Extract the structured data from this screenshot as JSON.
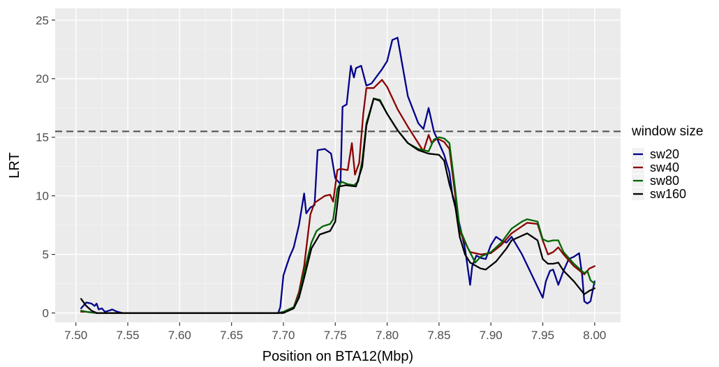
{
  "chart_data": {
    "type": "line",
    "xlabel": "Position on BTA12(Mbp)",
    "ylabel": "LRT",
    "xlim": [
      7.48,
      8.025
    ],
    "ylim": [
      -0.8,
      26
    ],
    "x_ticks": [
      7.5,
      7.55,
      7.6,
      7.65,
      7.7,
      7.75,
      7.8,
      7.85,
      7.9,
      7.95,
      8.0
    ],
    "x_tick_labels": [
      "7.50",
      "7.55",
      "7.60",
      "7.65",
      "7.70",
      "7.75",
      "7.80",
      "7.85",
      "7.90",
      "7.95",
      "8.00"
    ],
    "y_ticks": [
      0,
      5,
      10,
      15,
      20,
      25
    ],
    "y_tick_labels": [
      "0",
      "5",
      "10",
      "15",
      "20",
      "25"
    ],
    "threshold": {
      "y": 15.5,
      "style": "dashed",
      "color": "#555555"
    },
    "grid": true,
    "panel_background": "#ebebeb",
    "legend": {
      "title": "window size",
      "position": "right",
      "entries": [
        "sw20",
        "sw40",
        "sw80",
        "sw160"
      ]
    },
    "series": [
      {
        "name": "sw20",
        "color": "#00008b",
        "points": [
          [
            7.505,
            0.4
          ],
          [
            7.51,
            0.9
          ],
          [
            7.515,
            0.8
          ],
          [
            7.518,
            0.6
          ],
          [
            7.52,
            0.8
          ],
          [
            7.522,
            0.3
          ],
          [
            7.525,
            0.4
          ],
          [
            7.528,
            0.1
          ],
          [
            7.532,
            0.2
          ],
          [
            7.535,
            0.3
          ],
          [
            7.54,
            0.1
          ],
          [
            7.545,
            0.0
          ],
          [
            7.6,
            0.0
          ],
          [
            7.65,
            0.0
          ],
          [
            7.695,
            0.0
          ],
          [
            7.697,
            0.5
          ],
          [
            7.7,
            3.2
          ],
          [
            7.703,
            4.0
          ],
          [
            7.706,
            4.8
          ],
          [
            7.71,
            5.6
          ],
          [
            7.715,
            7.5
          ],
          [
            7.72,
            10.2
          ],
          [
            7.722,
            8.5
          ],
          [
            7.726,
            9.0
          ],
          [
            7.73,
            9.2
          ],
          [
            7.733,
            13.9
          ],
          [
            7.74,
            14.0
          ],
          [
            7.746,
            13.6
          ],
          [
            7.75,
            11.5
          ],
          [
            7.755,
            11.0
          ],
          [
            7.757,
            17.6
          ],
          [
            7.761,
            17.8
          ],
          [
            7.765,
            21.1
          ],
          [
            7.768,
            20.1
          ],
          [
            7.77,
            20.9
          ],
          [
            7.775,
            21.1
          ],
          [
            7.78,
            19.4
          ],
          [
            7.785,
            19.6
          ],
          [
            7.79,
            20.2
          ],
          [
            7.795,
            20.8
          ],
          [
            7.8,
            21.5
          ],
          [
            7.805,
            23.3
          ],
          [
            7.81,
            23.5
          ],
          [
            7.815,
            21.0
          ],
          [
            7.82,
            18.5
          ],
          [
            7.83,
            16.2
          ],
          [
            7.835,
            15.7
          ],
          [
            7.84,
            17.5
          ],
          [
            7.845,
            15.5
          ],
          [
            7.85,
            14.5
          ],
          [
            7.855,
            13.5
          ],
          [
            7.86,
            12.0
          ],
          [
            7.863,
            10.0
          ],
          [
            7.87,
            7.5
          ],
          [
            7.875,
            5.5
          ],
          [
            7.88,
            2.4
          ],
          [
            7.882,
            4.0
          ],
          [
            7.886,
            4.9
          ],
          [
            7.89,
            4.7
          ],
          [
            7.895,
            4.6
          ],
          [
            7.9,
            5.8
          ],
          [
            7.905,
            6.5
          ],
          [
            7.91,
            6.2
          ],
          [
            7.915,
            6.0
          ],
          [
            7.92,
            6.5
          ],
          [
            7.93,
            5.0
          ],
          [
            7.95,
            1.3
          ],
          [
            7.953,
            2.7
          ],
          [
            7.957,
            3.6
          ],
          [
            7.96,
            3.7
          ],
          [
            7.965,
            2.4
          ],
          [
            7.97,
            3.6
          ],
          [
            7.975,
            4.6
          ],
          [
            7.98,
            4.8
          ],
          [
            7.985,
            5.1
          ],
          [
            7.988,
            3.2
          ],
          [
            7.99,
            1.0
          ],
          [
            7.993,
            0.8
          ],
          [
            7.996,
            1.0
          ],
          [
            8.0,
            2.7
          ]
        ]
      },
      {
        "name": "sw40",
        "color": "#8b0000",
        "points": [
          [
            7.505,
            0.1
          ],
          [
            7.51,
            0.1
          ],
          [
            7.52,
            0.0
          ],
          [
            7.6,
            0.0
          ],
          [
            7.695,
            0.0
          ],
          [
            7.7,
            0.1
          ],
          [
            7.71,
            0.5
          ],
          [
            7.715,
            1.8
          ],
          [
            7.72,
            4.0
          ],
          [
            7.726,
            8.4
          ],
          [
            7.73,
            9.4
          ],
          [
            7.74,
            10.0
          ],
          [
            7.745,
            10.1
          ],
          [
            7.748,
            9.5
          ],
          [
            7.752,
            12.2
          ],
          [
            7.755,
            12.3
          ],
          [
            7.762,
            12.2
          ],
          [
            7.766,
            14.5
          ],
          [
            7.769,
            11.8
          ],
          [
            7.773,
            12.8
          ],
          [
            7.777,
            17.0
          ],
          [
            7.78,
            19.2
          ],
          [
            7.787,
            19.2
          ],
          [
            7.795,
            19.9
          ],
          [
            7.8,
            19.3
          ],
          [
            7.81,
            17.4
          ],
          [
            7.82,
            15.9
          ],
          [
            7.83,
            14.5
          ],
          [
            7.835,
            13.8
          ],
          [
            7.84,
            15.2
          ],
          [
            7.843,
            14.5
          ],
          [
            7.848,
            14.9
          ],
          [
            7.855,
            14.6
          ],
          [
            7.86,
            14.0
          ],
          [
            7.865,
            10.5
          ],
          [
            7.87,
            7.0
          ],
          [
            7.875,
            6.0
          ],
          [
            7.88,
            5.2
          ],
          [
            7.89,
            5.0
          ],
          [
            7.9,
            5.1
          ],
          [
            7.91,
            5.8
          ],
          [
            7.92,
            6.8
          ],
          [
            7.935,
            7.7
          ],
          [
            7.945,
            7.6
          ],
          [
            7.95,
            6.2
          ],
          [
            7.955,
            5.0
          ],
          [
            7.96,
            5.2
          ],
          [
            7.965,
            5.6
          ],
          [
            7.97,
            5.0
          ],
          [
            7.975,
            4.5
          ],
          [
            7.98,
            4.0
          ],
          [
            7.99,
            3.3
          ],
          [
            7.995,
            3.8
          ],
          [
            8.0,
            4.0
          ]
        ]
      },
      {
        "name": "sw80",
        "color": "#006400",
        "points": [
          [
            7.505,
            0.2
          ],
          [
            7.51,
            0.1
          ],
          [
            7.52,
            0.0
          ],
          [
            7.6,
            0.0
          ],
          [
            7.695,
            0.0
          ],
          [
            7.7,
            0.1
          ],
          [
            7.71,
            0.5
          ],
          [
            7.715,
            1.5
          ],
          [
            7.72,
            3.5
          ],
          [
            7.727,
            6.0
          ],
          [
            7.732,
            7.0
          ],
          [
            7.738,
            7.4
          ],
          [
            7.745,
            7.6
          ],
          [
            7.748,
            8.0
          ],
          [
            7.752,
            10.6
          ],
          [
            7.756,
            11.2
          ],
          [
            7.762,
            11.0
          ],
          [
            7.768,
            10.9
          ],
          [
            7.772,
            11.2
          ],
          [
            7.776,
            13.0
          ],
          [
            7.78,
            16.2
          ],
          [
            7.787,
            18.3
          ],
          [
            7.793,
            18.2
          ],
          [
            7.8,
            17.0
          ],
          [
            7.81,
            15.6
          ],
          [
            7.82,
            14.5
          ],
          [
            7.83,
            14.0
          ],
          [
            7.84,
            13.8
          ],
          [
            7.845,
            14.8
          ],
          [
            7.85,
            15.0
          ],
          [
            7.855,
            14.9
          ],
          [
            7.86,
            14.5
          ],
          [
            7.865,
            11.0
          ],
          [
            7.87,
            7.2
          ],
          [
            7.878,
            5.5
          ],
          [
            7.885,
            4.3
          ],
          [
            7.89,
            4.8
          ],
          [
            7.9,
            5.2
          ],
          [
            7.91,
            6.0
          ],
          [
            7.92,
            7.2
          ],
          [
            7.93,
            7.8
          ],
          [
            7.935,
            8.0
          ],
          [
            7.945,
            7.8
          ],
          [
            7.95,
            6.3
          ],
          [
            7.955,
            6.1
          ],
          [
            7.96,
            6.2
          ],
          [
            7.965,
            6.2
          ],
          [
            7.97,
            5.2
          ],
          [
            7.98,
            4.2
          ],
          [
            7.99,
            3.4
          ],
          [
            7.993,
            3.6
          ],
          [
            7.996,
            2.8
          ],
          [
            8.0,
            2.5
          ]
        ]
      },
      {
        "name": "sw160",
        "color": "#000000",
        "points": [
          [
            7.505,
            1.2
          ],
          [
            7.51,
            0.6
          ],
          [
            7.515,
            0.2
          ],
          [
            7.52,
            0.0
          ],
          [
            7.6,
            0.0
          ],
          [
            7.695,
            0.0
          ],
          [
            7.7,
            0.0
          ],
          [
            7.71,
            0.4
          ],
          [
            7.715,
            1.3
          ],
          [
            7.72,
            3.0
          ],
          [
            7.727,
            5.5
          ],
          [
            7.735,
            6.7
          ],
          [
            7.745,
            7.0
          ],
          [
            7.75,
            7.8
          ],
          [
            7.754,
            10.8
          ],
          [
            7.76,
            10.9
          ],
          [
            7.77,
            10.8
          ],
          [
            7.776,
            12.5
          ],
          [
            7.78,
            16.0
          ],
          [
            7.787,
            18.3
          ],
          [
            7.793,
            18.1
          ],
          [
            7.8,
            17.0
          ],
          [
            7.81,
            15.6
          ],
          [
            7.82,
            14.5
          ],
          [
            7.83,
            13.9
          ],
          [
            7.84,
            13.6
          ],
          [
            7.85,
            13.5
          ],
          [
            7.855,
            13.0
          ],
          [
            7.86,
            11.0
          ],
          [
            7.865,
            9.5
          ],
          [
            7.87,
            6.5
          ],
          [
            7.875,
            5.0
          ],
          [
            7.88,
            4.3
          ],
          [
            7.89,
            3.8
          ],
          [
            7.895,
            3.7
          ],
          [
            7.905,
            4.4
          ],
          [
            7.915,
            5.5
          ],
          [
            7.92,
            6.2
          ],
          [
            7.935,
            6.8
          ],
          [
            7.945,
            6.2
          ],
          [
            7.95,
            4.6
          ],
          [
            7.955,
            4.2
          ],
          [
            7.96,
            4.2
          ],
          [
            7.965,
            4.3
          ],
          [
            7.97,
            3.6
          ],
          [
            7.98,
            2.7
          ],
          [
            7.99,
            1.6
          ],
          [
            7.995,
            1.9
          ],
          [
            8.0,
            2.1
          ]
        ]
      }
    ]
  }
}
